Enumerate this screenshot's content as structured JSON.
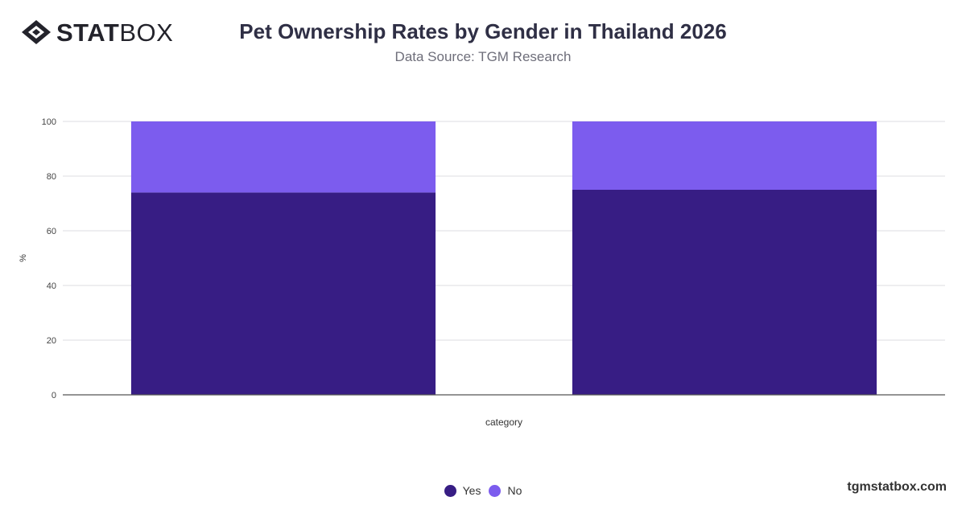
{
  "brand": {
    "logo_bold": "STAT",
    "logo_light": "BOX",
    "site": "tgmstatbox.com"
  },
  "header": {
    "title": "Pet Ownership Rates by Gender in Thailand 2026",
    "subtitle": "Data Source: TGM Research"
  },
  "chart_data": {
    "type": "bar",
    "stacked": true,
    "categories": [
      "",
      ""
    ],
    "series": [
      {
        "name": "Yes",
        "values": [
          74,
          75
        ],
        "color": "#371d84"
      },
      {
        "name": "No",
        "values": [
          26,
          25
        ],
        "color": "#7c5cee"
      }
    ],
    "xlabel": "category",
    "ylabel": "%",
    "ylim": [
      0,
      100
    ],
    "yticks": [
      0,
      20,
      40,
      60,
      80,
      100
    ],
    "grid": true,
    "legend_position": "bottom"
  }
}
